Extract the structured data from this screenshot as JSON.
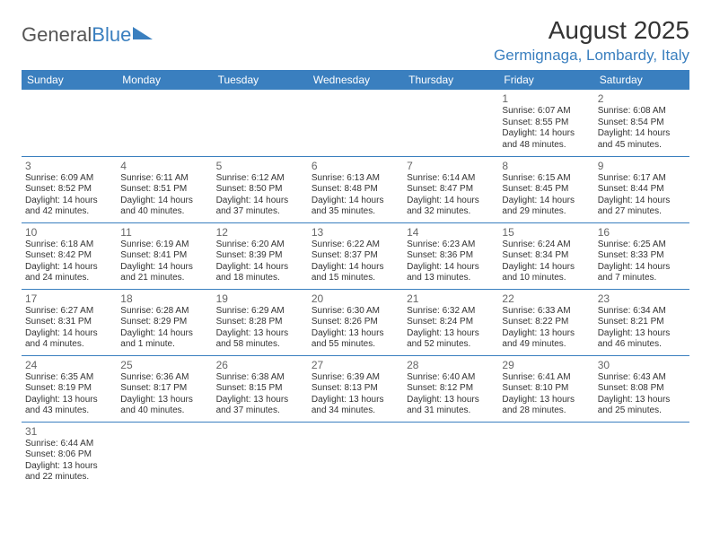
{
  "brand": {
    "general": "General",
    "blue": "Blue"
  },
  "title": "August 2025",
  "location": "Germignaga, Lombardy, Italy",
  "colors": {
    "accent": "#3a7fbf",
    "text": "#333333",
    "bg": "#ffffff"
  },
  "weekdays": [
    "Sunday",
    "Monday",
    "Tuesday",
    "Wednesday",
    "Thursday",
    "Friday",
    "Saturday"
  ],
  "layout": {
    "first_weekday_index": 5,
    "days_in_month": 31
  },
  "days": {
    "1": {
      "sunrise": "6:07 AM",
      "sunset": "8:55 PM",
      "daylight": "14 hours and 48 minutes."
    },
    "2": {
      "sunrise": "6:08 AM",
      "sunset": "8:54 PM",
      "daylight": "14 hours and 45 minutes."
    },
    "3": {
      "sunrise": "6:09 AM",
      "sunset": "8:52 PM",
      "daylight": "14 hours and 42 minutes."
    },
    "4": {
      "sunrise": "6:11 AM",
      "sunset": "8:51 PM",
      "daylight": "14 hours and 40 minutes."
    },
    "5": {
      "sunrise": "6:12 AM",
      "sunset": "8:50 PM",
      "daylight": "14 hours and 37 minutes."
    },
    "6": {
      "sunrise": "6:13 AM",
      "sunset": "8:48 PM",
      "daylight": "14 hours and 35 minutes."
    },
    "7": {
      "sunrise": "6:14 AM",
      "sunset": "8:47 PM",
      "daylight": "14 hours and 32 minutes."
    },
    "8": {
      "sunrise": "6:15 AM",
      "sunset": "8:45 PM",
      "daylight": "14 hours and 29 minutes."
    },
    "9": {
      "sunrise": "6:17 AM",
      "sunset": "8:44 PM",
      "daylight": "14 hours and 27 minutes."
    },
    "10": {
      "sunrise": "6:18 AM",
      "sunset": "8:42 PM",
      "daylight": "14 hours and 24 minutes."
    },
    "11": {
      "sunrise": "6:19 AM",
      "sunset": "8:41 PM",
      "daylight": "14 hours and 21 minutes."
    },
    "12": {
      "sunrise": "6:20 AM",
      "sunset": "8:39 PM",
      "daylight": "14 hours and 18 minutes."
    },
    "13": {
      "sunrise": "6:22 AM",
      "sunset": "8:37 PM",
      "daylight": "14 hours and 15 minutes."
    },
    "14": {
      "sunrise": "6:23 AM",
      "sunset": "8:36 PM",
      "daylight": "14 hours and 13 minutes."
    },
    "15": {
      "sunrise": "6:24 AM",
      "sunset": "8:34 PM",
      "daylight": "14 hours and 10 minutes."
    },
    "16": {
      "sunrise": "6:25 AM",
      "sunset": "8:33 PM",
      "daylight": "14 hours and 7 minutes."
    },
    "17": {
      "sunrise": "6:27 AM",
      "sunset": "8:31 PM",
      "daylight": "14 hours and 4 minutes."
    },
    "18": {
      "sunrise": "6:28 AM",
      "sunset": "8:29 PM",
      "daylight": "14 hours and 1 minute."
    },
    "19": {
      "sunrise": "6:29 AM",
      "sunset": "8:28 PM",
      "daylight": "13 hours and 58 minutes."
    },
    "20": {
      "sunrise": "6:30 AM",
      "sunset": "8:26 PM",
      "daylight": "13 hours and 55 minutes."
    },
    "21": {
      "sunrise": "6:32 AM",
      "sunset": "8:24 PM",
      "daylight": "13 hours and 52 minutes."
    },
    "22": {
      "sunrise": "6:33 AM",
      "sunset": "8:22 PM",
      "daylight": "13 hours and 49 minutes."
    },
    "23": {
      "sunrise": "6:34 AM",
      "sunset": "8:21 PM",
      "daylight": "13 hours and 46 minutes."
    },
    "24": {
      "sunrise": "6:35 AM",
      "sunset": "8:19 PM",
      "daylight": "13 hours and 43 minutes."
    },
    "25": {
      "sunrise": "6:36 AM",
      "sunset": "8:17 PM",
      "daylight": "13 hours and 40 minutes."
    },
    "26": {
      "sunrise": "6:38 AM",
      "sunset": "8:15 PM",
      "daylight": "13 hours and 37 minutes."
    },
    "27": {
      "sunrise": "6:39 AM",
      "sunset": "8:13 PM",
      "daylight": "13 hours and 34 minutes."
    },
    "28": {
      "sunrise": "6:40 AM",
      "sunset": "8:12 PM",
      "daylight": "13 hours and 31 minutes."
    },
    "29": {
      "sunrise": "6:41 AM",
      "sunset": "8:10 PM",
      "daylight": "13 hours and 28 minutes."
    },
    "30": {
      "sunrise": "6:43 AM",
      "sunset": "8:08 PM",
      "daylight": "13 hours and 25 minutes."
    },
    "31": {
      "sunrise": "6:44 AM",
      "sunset": "8:06 PM",
      "daylight": "13 hours and 22 minutes."
    }
  },
  "labels": {
    "sunrise": "Sunrise: ",
    "sunset": "Sunset: ",
    "daylight": "Daylight: "
  }
}
